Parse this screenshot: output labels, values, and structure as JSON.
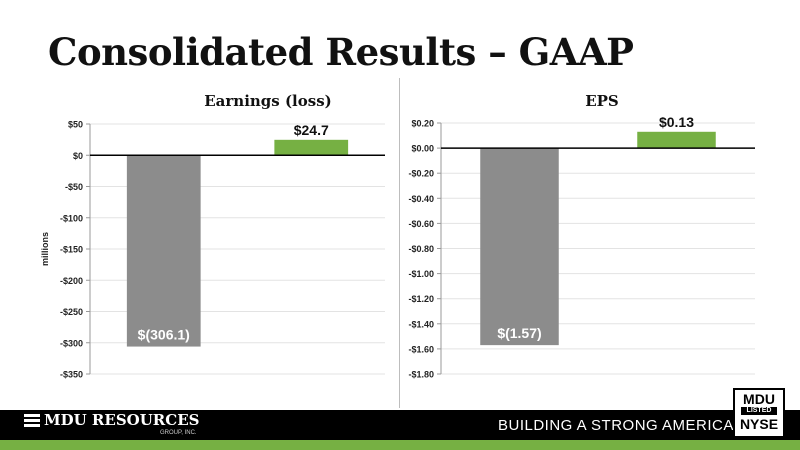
{
  "slide": {
    "title": "Consolidated Results – GAAP",
    "footer_company": "MDU RESOURCES",
    "footer_company_sub": "GROUP, INC.",
    "tagline": "BUILDING A STRONG AMERICA",
    "tagline_mark": "®",
    "badge": {
      "line1": "MDU",
      "line2": "LISTED",
      "line3": "NYSE"
    }
  },
  "colors": {
    "gray_bar": "#8c8c8c",
    "green_bar": "#76b043"
  },
  "chart_data": [
    {
      "type": "bar",
      "title": "Earnings (loss)",
      "ylabel": "millions",
      "categories": [
        "",
        ""
      ],
      "values": [
        -306.1,
        24.7
      ],
      "data_labels": [
        "$(306.1)",
        "$24.7"
      ],
      "bar_colors": [
        "#8c8c8c",
        "#76b043"
      ],
      "ylim": [
        -350,
        50
      ],
      "yticks": [
        50,
        0,
        -50,
        -100,
        -150,
        -200,
        -250,
        -300,
        -350
      ],
      "ytick_labels": [
        "$50",
        "$0",
        "-$50",
        "-$100",
        "-$150",
        "-$200",
        "-$250",
        "-$300",
        "-$350"
      ],
      "grid": true
    },
    {
      "type": "bar",
      "title": "EPS",
      "ylabel": "",
      "categories": [
        "",
        ""
      ],
      "values": [
        -1.57,
        0.13
      ],
      "data_labels": [
        "$(1.57)",
        "$0.13"
      ],
      "bar_colors": [
        "#8c8c8c",
        "#76b043"
      ],
      "ylim": [
        -1.8,
        0.2
      ],
      "yticks": [
        0.2,
        0.0,
        -0.2,
        -0.4,
        -0.6,
        -0.8,
        -1.0,
        -1.2,
        -1.4,
        -1.6,
        -1.8
      ],
      "ytick_labels": [
        "$0.20",
        "$0.00",
        "-$0.20",
        "-$0.40",
        "-$0.60",
        "-$0.80",
        "-$1.00",
        "-$1.20",
        "-$1.40",
        "-$1.60",
        "-$1.80"
      ],
      "grid": true
    }
  ]
}
